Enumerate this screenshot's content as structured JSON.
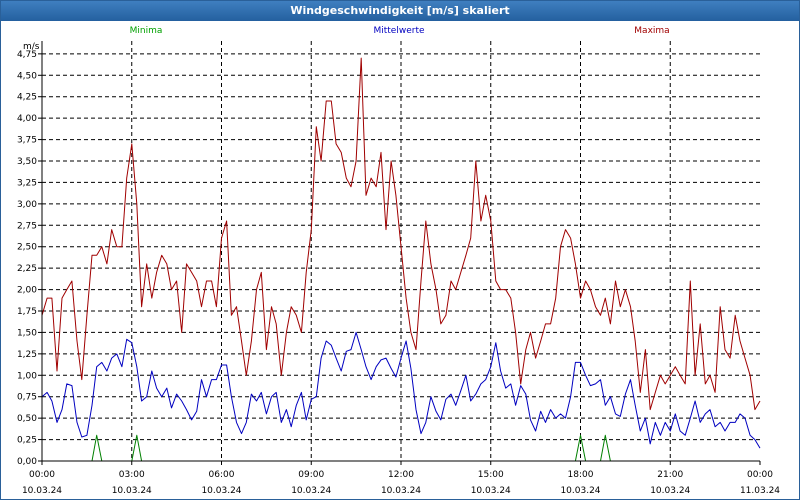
{
  "window": {
    "title": "Windgeschwindigkeit [m/s] skaliert"
  },
  "chart_data": {
    "type": "line",
    "title": "Windgeschwindigkeit [m/s] skaliert",
    "ylabel": "m/s",
    "ylim": [
      0,
      4.9
    ],
    "xlim": [
      0,
      24
    ],
    "grid": true,
    "legend_position": "top",
    "y_ticks": [
      {
        "value": 0.0,
        "label": "0,00"
      },
      {
        "value": 0.25,
        "label": "0,25"
      },
      {
        "value": 0.5,
        "label": "0,50"
      },
      {
        "value": 0.75,
        "label": "0,75"
      },
      {
        "value": 1.0,
        "label": "1,00"
      },
      {
        "value": 1.25,
        "label": "1,25"
      },
      {
        "value": 1.5,
        "label": "1,50"
      },
      {
        "value": 1.75,
        "label": "1,75"
      },
      {
        "value": 2.0,
        "label": "2,00"
      },
      {
        "value": 2.25,
        "label": "2,25"
      },
      {
        "value": 2.5,
        "label": "2,50"
      },
      {
        "value": 2.75,
        "label": "2,75"
      },
      {
        "value": 3.0,
        "label": "3,00"
      },
      {
        "value": 3.25,
        "label": "3,25"
      },
      {
        "value": 3.5,
        "label": "3,50"
      },
      {
        "value": 3.75,
        "label": "3,75"
      },
      {
        "value": 4.0,
        "label": "4,00"
      },
      {
        "value": 4.25,
        "label": "4,25"
      },
      {
        "value": 4.5,
        "label": "4,50"
      },
      {
        "value": 4.75,
        "label": "4,75"
      }
    ],
    "x_ticks": [
      {
        "value": 0,
        "time": "00:00",
        "date": "10.03.24"
      },
      {
        "value": 3,
        "time": "03:00",
        "date": "10.03.24"
      },
      {
        "value": 6,
        "time": "06:00",
        "date": "10.03.24"
      },
      {
        "value": 9,
        "time": "09:00",
        "date": "10.03.24"
      },
      {
        "value": 12,
        "time": "12:00",
        "date": "10.03.24"
      },
      {
        "value": 15,
        "time": "15:00",
        "date": "10.03.24"
      },
      {
        "value": 18,
        "time": "18:00",
        "date": "10.03.24"
      },
      {
        "value": 21,
        "time": "21:00",
        "date": "10.03.24"
      },
      {
        "value": 24,
        "time": "00:00",
        "date": "11.03.24"
      }
    ],
    "series": [
      {
        "name": "Minima",
        "color": "#008000",
        "x": [
          0.0,
          1.67,
          1.83,
          2.0,
          3.0,
          3.17,
          3.33,
          17.83,
          18.0,
          18.17,
          18.67,
          18.83,
          19.0,
          24.0
        ],
        "values": [
          0.0,
          0.0,
          0.3,
          0.0,
          0.0,
          0.3,
          0.0,
          0.0,
          0.3,
          0.0,
          0.0,
          0.3,
          0.0,
          0.0
        ]
      },
      {
        "name": "Mittelwerte",
        "color": "#0000c0",
        "x": [
          0.0,
          0.17,
          0.33,
          0.5,
          0.67,
          0.83,
          1.0,
          1.17,
          1.33,
          1.5,
          1.67,
          1.83,
          2.0,
          2.17,
          2.33,
          2.5,
          2.67,
          2.83,
          3.0,
          3.17,
          3.33,
          3.5,
          3.67,
          3.83,
          4.0,
          4.17,
          4.33,
          4.5,
          4.67,
          4.83,
          5.0,
          5.17,
          5.33,
          5.5,
          5.67,
          5.83,
          6.0,
          6.17,
          6.33,
          6.5,
          6.67,
          6.83,
          7.0,
          7.17,
          7.33,
          7.5,
          7.67,
          7.83,
          8.0,
          8.17,
          8.33,
          8.5,
          8.67,
          8.83,
          9.0,
          9.17,
          9.33,
          9.5,
          9.67,
          9.83,
          10.0,
          10.17,
          10.33,
          10.5,
          10.67,
          10.83,
          11.0,
          11.17,
          11.33,
          11.5,
          11.67,
          11.83,
          12.0,
          12.17,
          12.33,
          12.5,
          12.67,
          12.83,
          13.0,
          13.17,
          13.33,
          13.5,
          13.67,
          13.83,
          14.0,
          14.17,
          14.33,
          14.5,
          14.67,
          14.83,
          15.0,
          15.17,
          15.33,
          15.5,
          15.67,
          15.83,
          16.0,
          16.17,
          16.33,
          16.5,
          16.67,
          16.83,
          17.0,
          17.17,
          17.33,
          17.5,
          17.67,
          17.83,
          18.0,
          18.17,
          18.33,
          18.5,
          18.67,
          18.83,
          19.0,
          19.17,
          19.33,
          19.5,
          19.67,
          19.83,
          20.0,
          20.17,
          20.33,
          20.5,
          20.67,
          20.83,
          21.0,
          21.17,
          21.33,
          21.5,
          21.67,
          21.83,
          22.0,
          22.17,
          22.33,
          22.5,
          22.67,
          22.83,
          23.0,
          23.17,
          23.33,
          23.5,
          23.67,
          23.83,
          24.0
        ],
        "values": [
          0.75,
          0.8,
          0.7,
          0.45,
          0.6,
          0.9,
          0.88,
          0.45,
          0.28,
          0.3,
          0.65,
          1.1,
          1.15,
          1.05,
          1.2,
          1.25,
          1.1,
          1.42,
          1.38,
          1.1,
          0.7,
          0.75,
          1.05,
          0.85,
          0.75,
          0.85,
          0.62,
          0.78,
          0.7,
          0.6,
          0.48,
          0.58,
          0.95,
          0.75,
          0.95,
          0.95,
          1.12,
          1.12,
          0.75,
          0.45,
          0.32,
          0.45,
          0.78,
          0.7,
          0.8,
          0.55,
          0.75,
          0.8,
          0.45,
          0.6,
          0.4,
          0.65,
          0.8,
          0.48,
          0.72,
          0.75,
          1.2,
          1.4,
          1.35,
          1.2,
          1.05,
          1.28,
          1.3,
          1.5,
          1.3,
          1.1,
          0.95,
          1.1,
          1.18,
          1.2,
          1.08,
          0.98,
          1.2,
          1.4,
          1.08,
          0.6,
          0.32,
          0.45,
          0.75,
          0.58,
          0.48,
          0.72,
          0.78,
          0.65,
          0.82,
          1.0,
          0.7,
          0.78,
          0.9,
          0.95,
          1.1,
          1.38,
          1.05,
          0.85,
          0.9,
          0.65,
          0.88,
          0.78,
          0.48,
          0.35,
          0.58,
          0.45,
          0.6,
          0.5,
          0.55,
          0.5,
          0.75,
          1.15,
          1.15,
          1.0,
          0.88,
          0.9,
          0.95,
          0.65,
          0.75,
          0.55,
          0.52,
          0.78,
          0.95,
          0.65,
          0.35,
          0.5,
          0.2,
          0.45,
          0.3,
          0.45,
          0.35,
          0.55,
          0.35,
          0.3,
          0.5,
          0.7,
          0.45,
          0.55,
          0.6,
          0.4,
          0.45,
          0.35,
          0.45,
          0.45,
          0.55,
          0.5,
          0.3,
          0.25,
          0.15
        ]
      },
      {
        "name": "Maxima",
        "color": "#a00000",
        "x": [
          0.0,
          0.17,
          0.33,
          0.5,
          0.67,
          0.83,
          1.0,
          1.17,
          1.33,
          1.5,
          1.67,
          1.83,
          2.0,
          2.17,
          2.33,
          2.5,
          2.67,
          2.83,
          3.0,
          3.17,
          3.33,
          3.5,
          3.67,
          3.83,
          4.0,
          4.17,
          4.33,
          4.5,
          4.67,
          4.83,
          5.0,
          5.17,
          5.33,
          5.5,
          5.67,
          5.83,
          6.0,
          6.17,
          6.33,
          6.5,
          6.67,
          6.83,
          7.0,
          7.17,
          7.33,
          7.5,
          7.67,
          7.83,
          8.0,
          8.17,
          8.33,
          8.5,
          8.67,
          8.83,
          9.0,
          9.17,
          9.33,
          9.5,
          9.67,
          9.83,
          10.0,
          10.17,
          10.33,
          10.5,
          10.67,
          10.83,
          11.0,
          11.17,
          11.33,
          11.5,
          11.67,
          11.83,
          12.0,
          12.17,
          12.33,
          12.5,
          12.67,
          12.83,
          13.0,
          13.17,
          13.33,
          13.5,
          13.67,
          13.83,
          14.0,
          14.17,
          14.33,
          14.5,
          14.67,
          14.83,
          15.0,
          15.17,
          15.33,
          15.5,
          15.67,
          15.83,
          16.0,
          16.17,
          16.33,
          16.5,
          16.67,
          16.83,
          17.0,
          17.17,
          17.33,
          17.5,
          17.67,
          17.83,
          18.0,
          18.17,
          18.33,
          18.5,
          18.67,
          18.83,
          19.0,
          19.17,
          19.33,
          19.5,
          19.67,
          19.83,
          20.0,
          20.17,
          20.33,
          20.5,
          20.67,
          20.83,
          21.0,
          21.17,
          21.33,
          21.5,
          21.67,
          21.83,
          22.0,
          22.17,
          22.33,
          22.5,
          22.67,
          22.83,
          23.0,
          23.17,
          23.33,
          23.5,
          23.67,
          23.83,
          24.0
        ],
        "values": [
          1.7,
          1.9,
          1.9,
          1.05,
          1.9,
          2.0,
          2.1,
          1.4,
          0.95,
          1.7,
          2.4,
          2.4,
          2.5,
          2.3,
          2.7,
          2.5,
          2.5,
          3.3,
          3.7,
          3.0,
          1.8,
          2.3,
          1.9,
          2.2,
          2.4,
          2.3,
          2.0,
          2.1,
          1.5,
          2.3,
          2.2,
          2.1,
          1.8,
          2.1,
          2.1,
          1.8,
          2.6,
          2.8,
          1.7,
          1.8,
          1.4,
          1.0,
          1.4,
          2.0,
          2.2,
          1.3,
          1.8,
          1.6,
          1.0,
          1.5,
          1.8,
          1.7,
          1.5,
          2.2,
          2.7,
          3.9,
          3.5,
          4.2,
          4.2,
          3.7,
          3.6,
          3.3,
          3.2,
          3.5,
          4.7,
          3.1,
          3.3,
          3.2,
          3.6,
          2.7,
          3.5,
          3.1,
          2.5,
          1.9,
          1.5,
          1.3,
          2.1,
          2.8,
          2.3,
          2.0,
          1.6,
          1.7,
          2.1,
          2.0,
          2.2,
          2.4,
          2.6,
          3.5,
          2.8,
          3.1,
          2.8,
          2.1,
          2.0,
          2.0,
          1.9,
          1.5,
          0.9,
          1.3,
          1.5,
          1.2,
          1.4,
          1.6,
          1.6,
          1.9,
          2.5,
          2.7,
          2.6,
          2.3,
          1.9,
          2.1,
          2.0,
          1.8,
          1.7,
          1.9,
          1.6,
          2.1,
          1.8,
          2.0,
          1.8,
          1.4,
          0.8,
          1.3,
          0.6,
          0.8,
          1.0,
          0.9,
          1.0,
          1.1,
          1.0,
          0.9,
          2.1,
          1.0,
          1.6,
          0.9,
          1.0,
          0.8,
          1.8,
          1.3,
          1.2,
          1.7,
          1.4,
          1.2,
          1.0,
          0.6,
          0.7
        ]
      }
    ]
  }
}
